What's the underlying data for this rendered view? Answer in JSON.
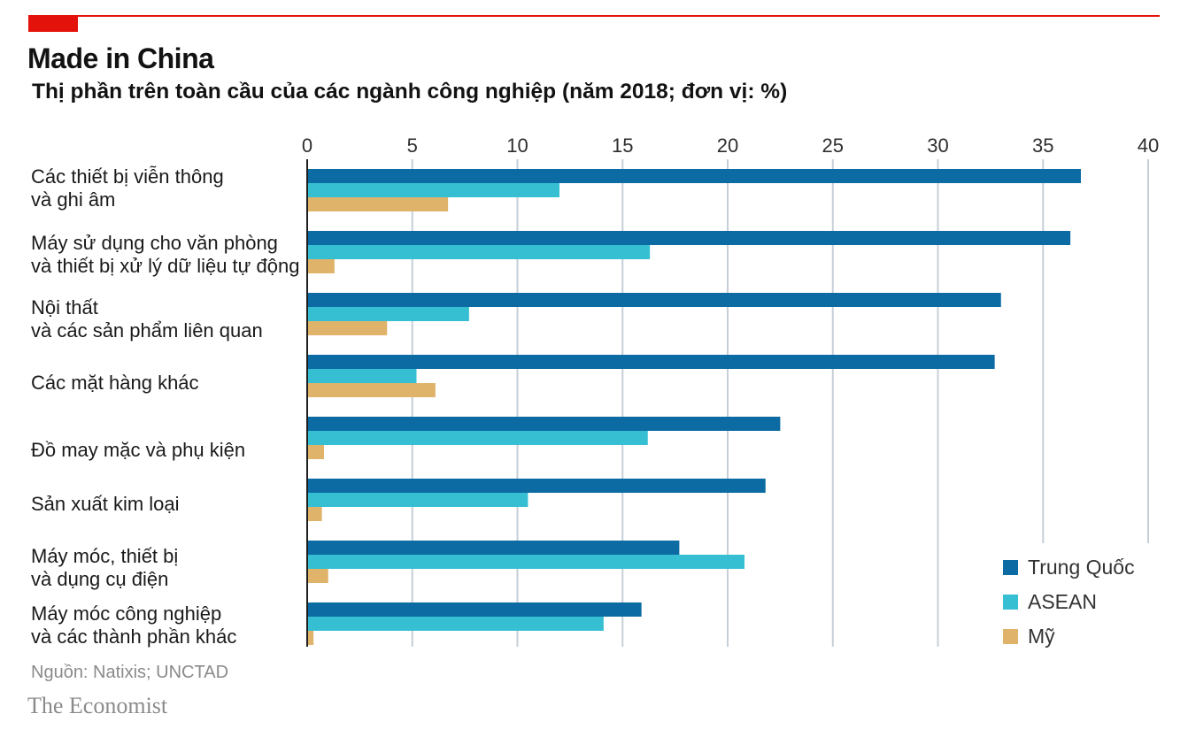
{
  "colors": {
    "accent": "#e3120b",
    "grid": "#c5cfd8",
    "axis": "#1f1f1f",
    "text": "#1a1a1a",
    "muted": "#8a8a8a"
  },
  "chart_data": {
    "type": "bar",
    "horizontal": true,
    "title": "Made in China",
    "subtitle": "Thị phần trên toàn cầu của các ngành công nghiệp (năm 2018; đơn vị: %)",
    "xlim": [
      0,
      40
    ],
    "xticks": [
      0,
      5,
      10,
      15,
      20,
      25,
      30,
      35,
      40
    ],
    "grid": true,
    "legend_position": "bottom-right",
    "categories": [
      "Các thiết bị viễn thông\nvà ghi âm",
      "Máy sử dụng cho văn phòng\nvà thiết bị xử lý dữ liệu tự động",
      "Nội thất\nvà các sản phẩm liên quan",
      "Các mặt hàng khác",
      "Đồ may mặc và phụ kiện",
      "Sản xuất kim loại",
      "Máy móc, thiết bị\nvà dụng cụ điện",
      "Máy móc công nghiệp\nvà các thành phần khác"
    ],
    "series": [
      {
        "name": "Trung Quốc",
        "color": "#0b6ba2",
        "values": [
          36.8,
          36.3,
          33.0,
          32.7,
          22.5,
          21.8,
          17.7,
          15.9
        ]
      },
      {
        "name": "ASEAN",
        "color": "#36bfd3",
        "values": [
          12.0,
          16.3,
          7.7,
          5.2,
          16.2,
          10.5,
          20.8,
          14.1
        ]
      },
      {
        "name": "Mỹ",
        "color": "#dfb46a",
        "values": [
          6.7,
          1.3,
          3.8,
          6.1,
          0.8,
          0.7,
          1.0,
          0.3
        ]
      }
    ],
    "source": "Nguồn: Natixis; UNCTAD"
  },
  "footer": {
    "brand": "The Economist"
  }
}
